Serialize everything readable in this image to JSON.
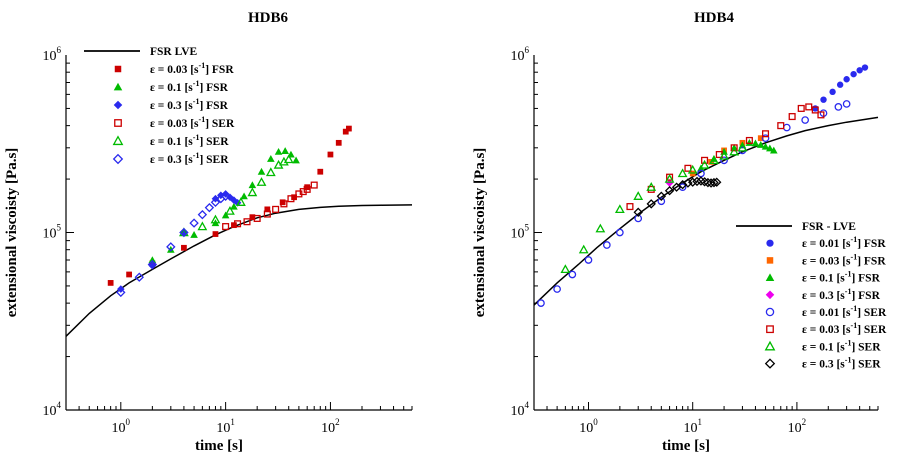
{
  "chart_data": [
    {
      "type": "scatter",
      "title": "HDB6",
      "xlabel": "time [s]",
      "ylabel": "extensional viscoisty [Pa.s]",
      "xscale": "log",
      "yscale": "log",
      "xlim": [
        0.3,
        600
      ],
      "ylim": [
        10000,
        1000000
      ],
      "xticks": [
        "10^0",
        "10^1",
        "10^2"
      ],
      "yticks": [
        "10^4",
        "10^5",
        "10^6"
      ],
      "grid": false,
      "legend_position": "top-left",
      "series": [
        {
          "name": "FSR LVE",
          "kind": "line",
          "color": "#000000",
          "x": [
            0.3,
            0.5,
            0.8,
            1.2,
            2,
            3,
            5,
            8,
            12,
            20,
            30,
            50,
            80,
            120,
            200,
            300,
            600
          ],
          "y": [
            26000,
            35000,
            44000,
            52000,
            62000,
            71000,
            84000,
            97000,
            108000,
            121000,
            128500,
            135000,
            138500,
            140500,
            142000,
            142500,
            143000
          ]
        },
        {
          "name": "ε = 0.03 [s-1] FSR",
          "marker": "square",
          "filled": true,
          "color": "#cc0000",
          "x": [
            0.8,
            1.2,
            2,
            4,
            8,
            12,
            18,
            25,
            35,
            45,
            60,
            80,
            100,
            120,
            140,
            150
          ],
          "y": [
            52000,
            58000,
            67000,
            82000,
            98000,
            110000,
            122000,
            135000,
            148000,
            158000,
            180000,
            220000,
            275000,
            320000,
            370000,
            385000
          ]
        },
        {
          "name": "ε = 0.1 [s-1] FSR",
          "marker": "triangle",
          "filled": true,
          "color": "#00bb00",
          "x": [
            2,
            3,
            5,
            8,
            10,
            12,
            15,
            18,
            22,
            27,
            32,
            37,
            42,
            47
          ],
          "y": [
            70000,
            80000,
            97000,
            113000,
            125000,
            140000,
            160000,
            185000,
            220000,
            260000,
            285000,
            288000,
            275000,
            255000
          ]
        },
        {
          "name": "ε = 0.3 [s-1] FSR",
          "marker": "diamond",
          "filled": true,
          "color": "#2a2aee",
          "x": [
            1,
            2,
            4,
            8,
            9,
            10,
            11,
            12,
            13
          ],
          "y": [
            48000,
            65000,
            100000,
            155000,
            162000,
            165000,
            158000,
            152000,
            147000
          ]
        },
        {
          "name": "ε = 0.03 [s-1] SER",
          "marker": "square",
          "filled": false,
          "color": "#cc0000",
          "x": [
            10,
            13,
            16,
            20,
            25,
            30,
            36,
            42,
            50,
            55,
            60,
            70
          ],
          "y": [
            108000,
            112000,
            115000,
            120000,
            127000,
            135000,
            145000,
            155000,
            165000,
            170000,
            175000,
            185000
          ]
        },
        {
          "name": "ε = 0.1 [s-1] SER",
          "marker": "triangle",
          "filled": false,
          "color": "#00bb00",
          "x": [
            4,
            6,
            8,
            11,
            14,
            18,
            22,
            27,
            32,
            36,
            40
          ],
          "y": [
            100000,
            108000,
            118000,
            132000,
            148000,
            168000,
            192000,
            218000,
            240000,
            250000,
            258000
          ]
        },
        {
          "name": "ε = 0.3 [s-1] SER",
          "marker": "diamond",
          "filled": false,
          "color": "#2a2aee",
          "x": [
            1,
            1.5,
            2,
            3,
            4,
            5,
            6,
            7,
            8,
            9,
            10
          ],
          "y": [
            46000,
            56000,
            66000,
            83000,
            100000,
            113000,
            126000,
            138000,
            148000,
            155000,
            160000
          ]
        }
      ]
    },
    {
      "type": "scatter",
      "title": "HDB4",
      "xlabel": "time [s]",
      "ylabel": "extensional viscoisty [Pa.s]",
      "xscale": "log",
      "yscale": "log",
      "xlim": [
        0.3,
        600
      ],
      "ylim": [
        10000,
        1000000
      ],
      "xticks": [
        "10^0",
        "10^1",
        "10^2"
      ],
      "yticks": [
        "10^4",
        "10^5",
        "10^6"
      ],
      "grid": false,
      "legend_position": "bottom-right",
      "series": [
        {
          "name": "FSR - LVE",
          "kind": "line",
          "color": "#000000",
          "x": [
            0.3,
            0.5,
            0.8,
            1.2,
            2,
            3,
            5,
            8,
            12,
            20,
            30,
            50,
            80,
            120,
            200,
            300,
            600
          ],
          "y": [
            39000,
            52000,
            66000,
            82000,
            105000,
            127000,
            158000,
            190000,
            220000,
            255000,
            285000,
            320000,
            350000,
            375000,
            400000,
            418000,
            445000
          ]
        },
        {
          "name": "ε = 0.01 [s-1] FSR",
          "marker": "circle",
          "filled": true,
          "color": "#2a2aee",
          "x": [
            150,
            180,
            220,
            260,
            300,
            350,
            400,
            450
          ],
          "y": [
            500000,
            560000,
            620000,
            680000,
            730000,
            780000,
            820000,
            850000
          ]
        },
        {
          "name": "ε = 0.03 [s-1] FSR",
          "marker": "square",
          "filled": true,
          "color": "#ff6600",
          "x": [
            10,
            15,
            20,
            30,
            45
          ],
          "y": [
            215000,
            250000,
            290000,
            320000,
            340000
          ]
        },
        {
          "name": "ε = 0.1 [s-1] FSR",
          "marker": "triangle",
          "filled": true,
          "color": "#00bb00",
          "x": [
            12,
            16,
            20,
            25,
            30,
            35,
            40,
            45,
            50,
            55,
            60
          ],
          "y": [
            230000,
            260000,
            285000,
            300000,
            310000,
            320000,
            318000,
            312000,
            305000,
            298000,
            290000
          ]
        },
        {
          "name": "ε = 0.3 [s-1] FSR",
          "marker": "diamond",
          "filled": true,
          "color": "#ee00ee",
          "x": [
            6
          ],
          "y": [
            190000
          ]
        },
        {
          "name": "ε = 0.01 [s-1] SER",
          "marker": "circle",
          "filled": false,
          "color": "#2a2aee",
          "x": [
            0.35,
            0.5,
            0.7,
            1,
            1.5,
            2,
            3,
            5,
            8,
            12,
            20,
            30,
            50,
            80,
            120,
            180,
            250,
            300
          ],
          "y": [
            40000,
            48000,
            58000,
            70000,
            85000,
            100000,
            120000,
            150000,
            180000,
            215000,
            255000,
            290000,
            340000,
            390000,
            430000,
            470000,
            510000,
            530000
          ]
        },
        {
          "name": "ε = 0.03 [s-1] SER",
          "marker": "square",
          "filled": false,
          "color": "#cc0000",
          "x": [
            2.5,
            4,
            6,
            9,
            13,
            18,
            25,
            35,
            50,
            70,
            90,
            110,
            130,
            150,
            170
          ],
          "y": [
            140000,
            175000,
            205000,
            230000,
            255000,
            275000,
            300000,
            330000,
            360000,
            400000,
            450000,
            500000,
            510000,
            490000,
            460000
          ]
        },
        {
          "name": "ε = 0.1 [s-1] SER",
          "marker": "triangle",
          "filled": false,
          "color": "#00bb00",
          "x": [
            0.6,
            0.9,
            1.3,
            2,
            3,
            4,
            6,
            8,
            10,
            13,
            16,
            20,
            25,
            30
          ],
          "y": [
            62000,
            80000,
            105000,
            135000,
            160000,
            180000,
            200000,
            215000,
            225000,
            240000,
            255000,
            270000,
            285000,
            300000
          ]
        },
        {
          "name": "ε = 0.3 [s-1] SER",
          "marker": "diamond",
          "filled": false,
          "color": "#000000",
          "x": [
            3,
            4,
            5,
            6,
            7,
            8,
            9,
            10,
            11,
            12,
            13,
            14,
            15,
            16,
            17
          ],
          "y": [
            130000,
            145000,
            160000,
            172000,
            180000,
            186000,
            190000,
            192000,
            194000,
            195000,
            193000,
            191000,
            190000,
            191000,
            192000
          ]
        }
      ]
    }
  ]
}
